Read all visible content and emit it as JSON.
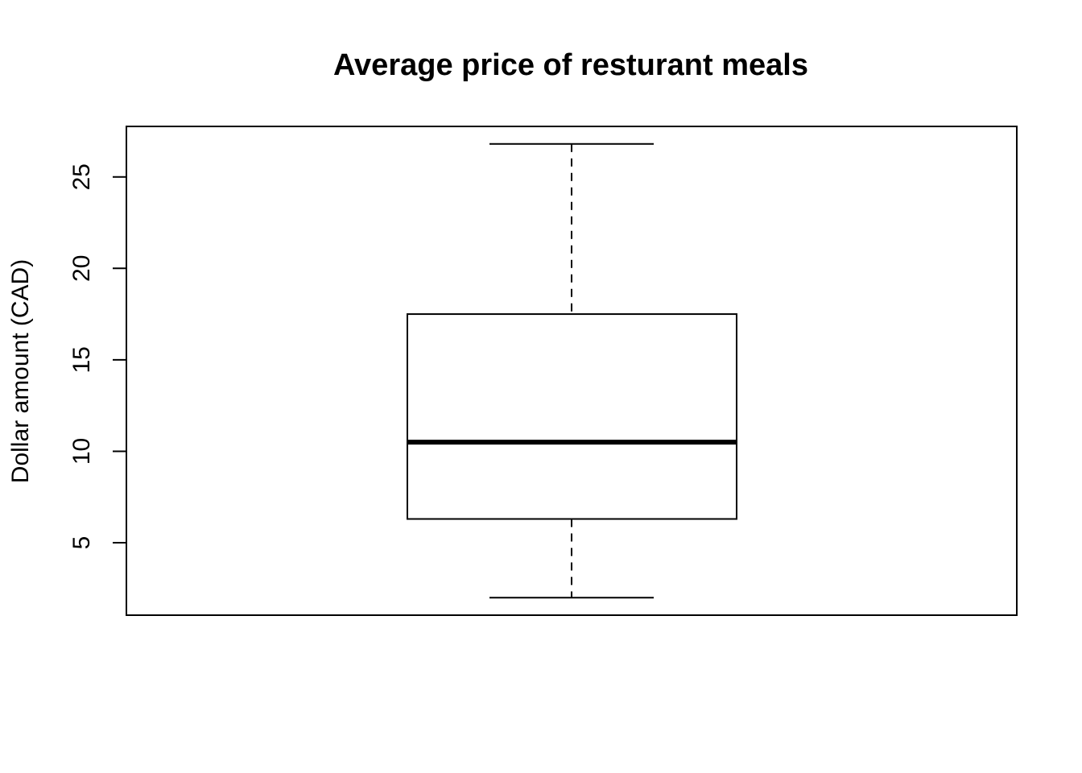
{
  "chart_data": {
    "type": "box",
    "title": "Average price of resturant meals",
    "xlabel": "",
    "ylabel": "Dollar amount (CAD)",
    "ylim": [
      1.04,
      27.76
    ],
    "yticks": [
      "5",
      "10",
      "15",
      "20",
      "25"
    ],
    "grid": false,
    "legend": "none",
    "series": [
      {
        "min": 2.0,
        "q1": 6.3,
        "median": 10.5,
        "q3": 17.5,
        "max": 26.8
      }
    ],
    "colors": {
      "line": "#000000",
      "box_fill": "#ffffff"
    }
  }
}
